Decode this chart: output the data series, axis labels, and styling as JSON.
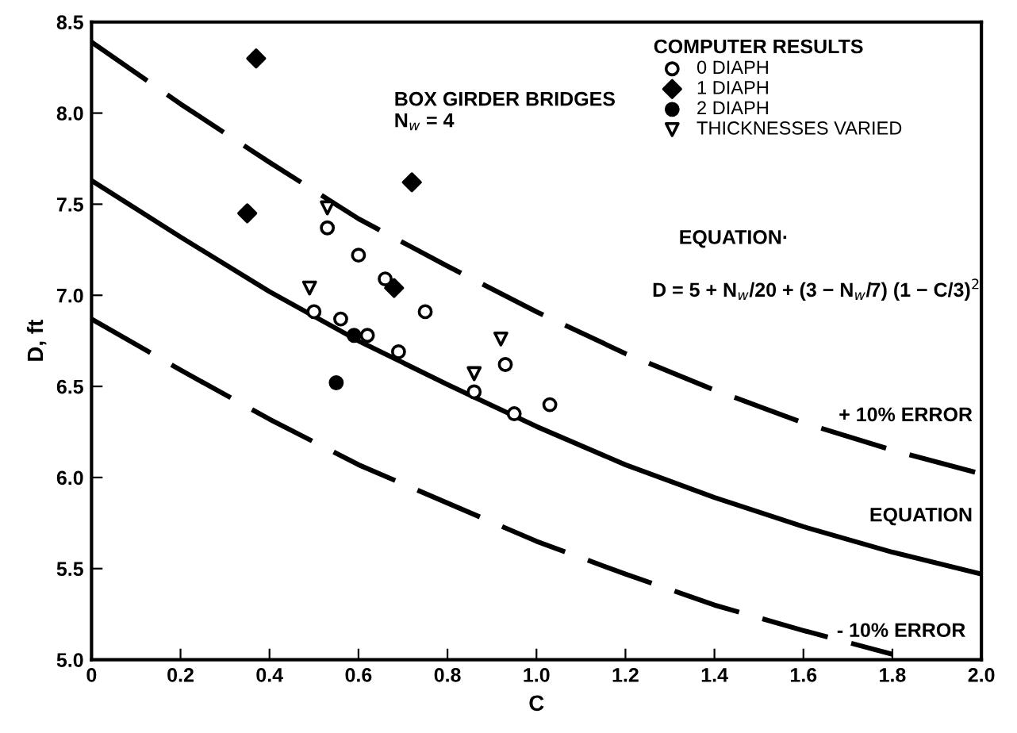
{
  "chart_data": {
    "type": "scatter",
    "xlabel": "C",
    "ylabel": "D, ft",
    "xlim": [
      0,
      2.0
    ],
    "ylim": [
      5.0,
      8.5
    ],
    "xticks": [
      0,
      0.2,
      0.4,
      0.6,
      0.8,
      {
        "value": 1.0,
        "label": "1.0"
      },
      1.2,
      1.4,
      1.6,
      1.8,
      {
        "value": 2.0,
        "label": "2.0"
      }
    ],
    "yticks": [
      {
        "value": 5.0,
        "label": "5.0"
      },
      5.5,
      {
        "value": 6.0,
        "label": "6.0"
      },
      6.5,
      {
        "value": 7.0,
        "label": "7.0"
      },
      7.5,
      {
        "value": 8.0,
        "label": "8.0"
      },
      8.5
    ],
    "grid": false,
    "legend": "top right",
    "legend_title": "COMPUTER RESULTS",
    "annotations": [
      "BOX GIRDER BRIDGES\nN$_{w}$ = 4",
      "EQUATION·",
      "D = 5 + N$_{w}$/20 + (3 − N$_{w}$/7) (1 − C/3)$^{2}$"
    ],
    "series": [
      {
        "name": "0 DIAPH",
        "marker": "circle",
        "color": "#ffffff",
        "x": [
          0.53,
          0.6,
          0.66,
          0.5,
          0.56,
          0.62,
          0.69,
          0.75,
          0.93,
          0.86,
          0.95,
          1.03
        ],
        "values": [
          7.37,
          7.22,
          7.09,
          6.91,
          6.87,
          6.78,
          6.69,
          6.91,
          6.62,
          6.47,
          6.35,
          6.4
        ]
      },
      {
        "name": "1 DIAPH",
        "marker": "diamond",
        "color": "#000000",
        "x": [
          0.37,
          0.35,
          0.72,
          0.68
        ],
        "values": [
          8.3,
          7.45,
          7.62,
          7.04
        ]
      },
      {
        "name": "2 DIAPH",
        "marker": "circle",
        "color": "#000000",
        "x": [
          0.59,
          0.55
        ],
        "values": [
          6.78,
          6.52
        ]
      },
      {
        "name": "THICKNESSES VARIED",
        "marker": "triangle",
        "color": "#ffffff",
        "x": [
          0.53,
          0.49,
          0.86,
          0.92
        ],
        "values": [
          7.48,
          7.04,
          6.57,
          6.76
        ]
      },
      {
        "name": "+ 10% ERROR",
        "type": "line",
        "line_style": "dashed",
        "color": "#000000",
        "x": [
          0,
          0.2,
          0.4,
          0.6,
          0.8,
          1.0,
          1.2,
          1.4,
          1.6,
          1.8,
          2.0
        ],
        "values": [
          8.39,
          8.05,
          7.73,
          7.42,
          7.16,
          6.91,
          6.68,
          6.48,
          6.3,
          6.15,
          6.02
        ]
      },
      {
        "name": "EQUATION",
        "type": "line",
        "line_style": "solid",
        "color": "#000000",
        "x": [
          0,
          0.2,
          0.4,
          0.6,
          0.8,
          1.0,
          1.2,
          1.4,
          1.6,
          1.8,
          2.0
        ],
        "values": [
          7.63,
          7.32,
          7.02,
          6.75,
          6.51,
          6.28,
          6.07,
          5.89,
          5.73,
          5.59,
          5.47
        ]
      },
      {
        "name": "- 10% ERROR",
        "type": "line",
        "line_style": "dashed",
        "color": "#000000",
        "x": [
          0,
          0.2,
          0.4,
          0.6,
          0.8,
          1.0,
          1.2,
          1.4,
          1.6,
          1.8
        ],
        "values": [
          6.87,
          6.59,
          6.32,
          6.07,
          5.86,
          5.65,
          5.47,
          5.3,
          5.16,
          5.03
        ]
      }
    ]
  }
}
